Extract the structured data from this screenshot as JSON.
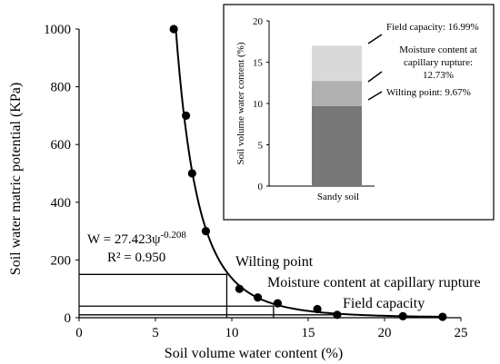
{
  "chart_data": [
    {
      "type": "scatter",
      "xlabel": "Soil volume water content (%)",
      "ylabel": "Soil water matric potential (KPa)",
      "xlim": [
        0,
        25
      ],
      "ylim": [
        0,
        1000
      ],
      "xticks": [
        0,
        5,
        10,
        15,
        20,
        25
      ],
      "yticks": [
        0,
        200,
        400,
        600,
        800,
        1000
      ],
      "grid": false,
      "points": {
        "x": [
          6.2,
          7.0,
          7.4,
          8.3,
          10.5,
          11.7,
          13.0,
          15.6,
          16.9,
          21.2,
          23.8
        ],
        "y": [
          1000,
          700,
          500,
          300,
          100,
          70,
          50,
          30,
          10,
          5,
          3
        ]
      },
      "fit": {
        "equation_prefix": "W = 27.423ψ",
        "equation_exponent": "-0.208",
        "r2_text": "R² = 0.950"
      },
      "reference_lines": [
        {
          "label": "Wilting point",
          "x": 9.67,
          "y": 150
        },
        {
          "label": "Moisture content at capillary rupture",
          "x": 12.73,
          "y": 40
        },
        {
          "label": "Field capacity",
          "x": 16.99,
          "y": 10
        }
      ]
    },
    {
      "type": "bar",
      "stacked": true,
      "categories": [
        "Sandy soil"
      ],
      "ylabel": "Soil volume water content (%)",
      "ylim": [
        0,
        20
      ],
      "yticks": [
        0,
        5,
        10,
        15,
        20
      ],
      "segments": [
        {
          "label": "Wilting point: 9.67%",
          "lines": [
            "Wilting point: 9.67%"
          ],
          "value": 9.67,
          "color": "#777777"
        },
        {
          "label": "Moisture content at capillary rupture: 12.73%",
          "lines": [
            "Moisture content at",
            "capillary rupture:",
            "12.73%"
          ],
          "value": 12.73,
          "color": "#b0b0b0"
        },
        {
          "label": "Field capacity: 16.99%",
          "lines": [
            "Field capacity: 16.99%"
          ],
          "value": 16.99,
          "color": "#d9d9d9"
        }
      ]
    }
  ]
}
